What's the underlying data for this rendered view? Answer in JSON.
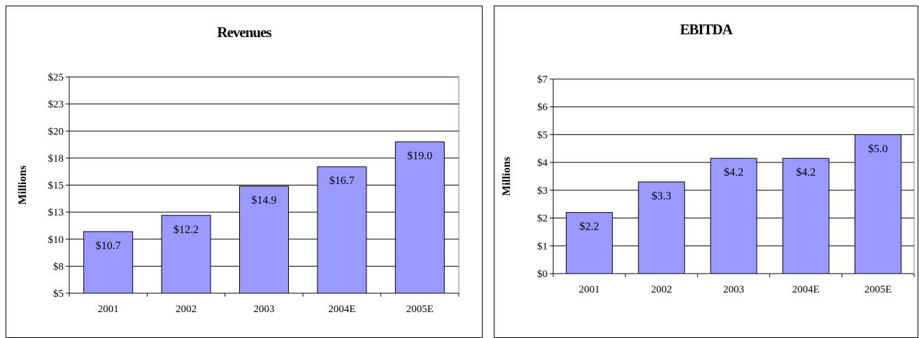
{
  "chart_data": [
    {
      "type": "bar",
      "title": "Revenues",
      "ylabel": "Millions",
      "categories": [
        "2001",
        "2002",
        "2003",
        "2004E",
        "2005E"
      ],
      "values": [
        10.7,
        12.2,
        14.9,
        16.7,
        19.0
      ],
      "data_labels": [
        "$10.7",
        "$12.2",
        "$14.9",
        "$16.7",
        "$19.0"
      ],
      "ylim": [
        5,
        25
      ],
      "y_ticks": [
        5,
        7.5,
        10,
        12.5,
        15,
        17.5,
        20,
        22.5,
        25
      ],
      "y_tick_labels": [
        "$5",
        "$8",
        "$10",
        "$13",
        "$15",
        "$18",
        "$20",
        "$23",
        "$25"
      ],
      "grid": true,
      "bar_color": "#9999ff"
    },
    {
      "type": "bar",
      "title": "EBITDA",
      "ylabel": "Millions",
      "categories": [
        "2001",
        "2002",
        "2003",
        "2004E",
        "2005E"
      ],
      "values": [
        2.2,
        3.3,
        4.15,
        4.15,
        5.0
      ],
      "data_labels": [
        "$2.2",
        "$3.3",
        "$4.2",
        "$4.2",
        "$5.0"
      ],
      "ylim": [
        0,
        7
      ],
      "y_ticks": [
        0,
        1,
        2,
        3,
        4,
        5,
        6,
        7
      ],
      "y_tick_labels": [
        "$0",
        "$1",
        "$2",
        "$3",
        "$4",
        "$5",
        "$6",
        "$7"
      ],
      "grid": true,
      "bar_color": "#9999ff"
    }
  ]
}
